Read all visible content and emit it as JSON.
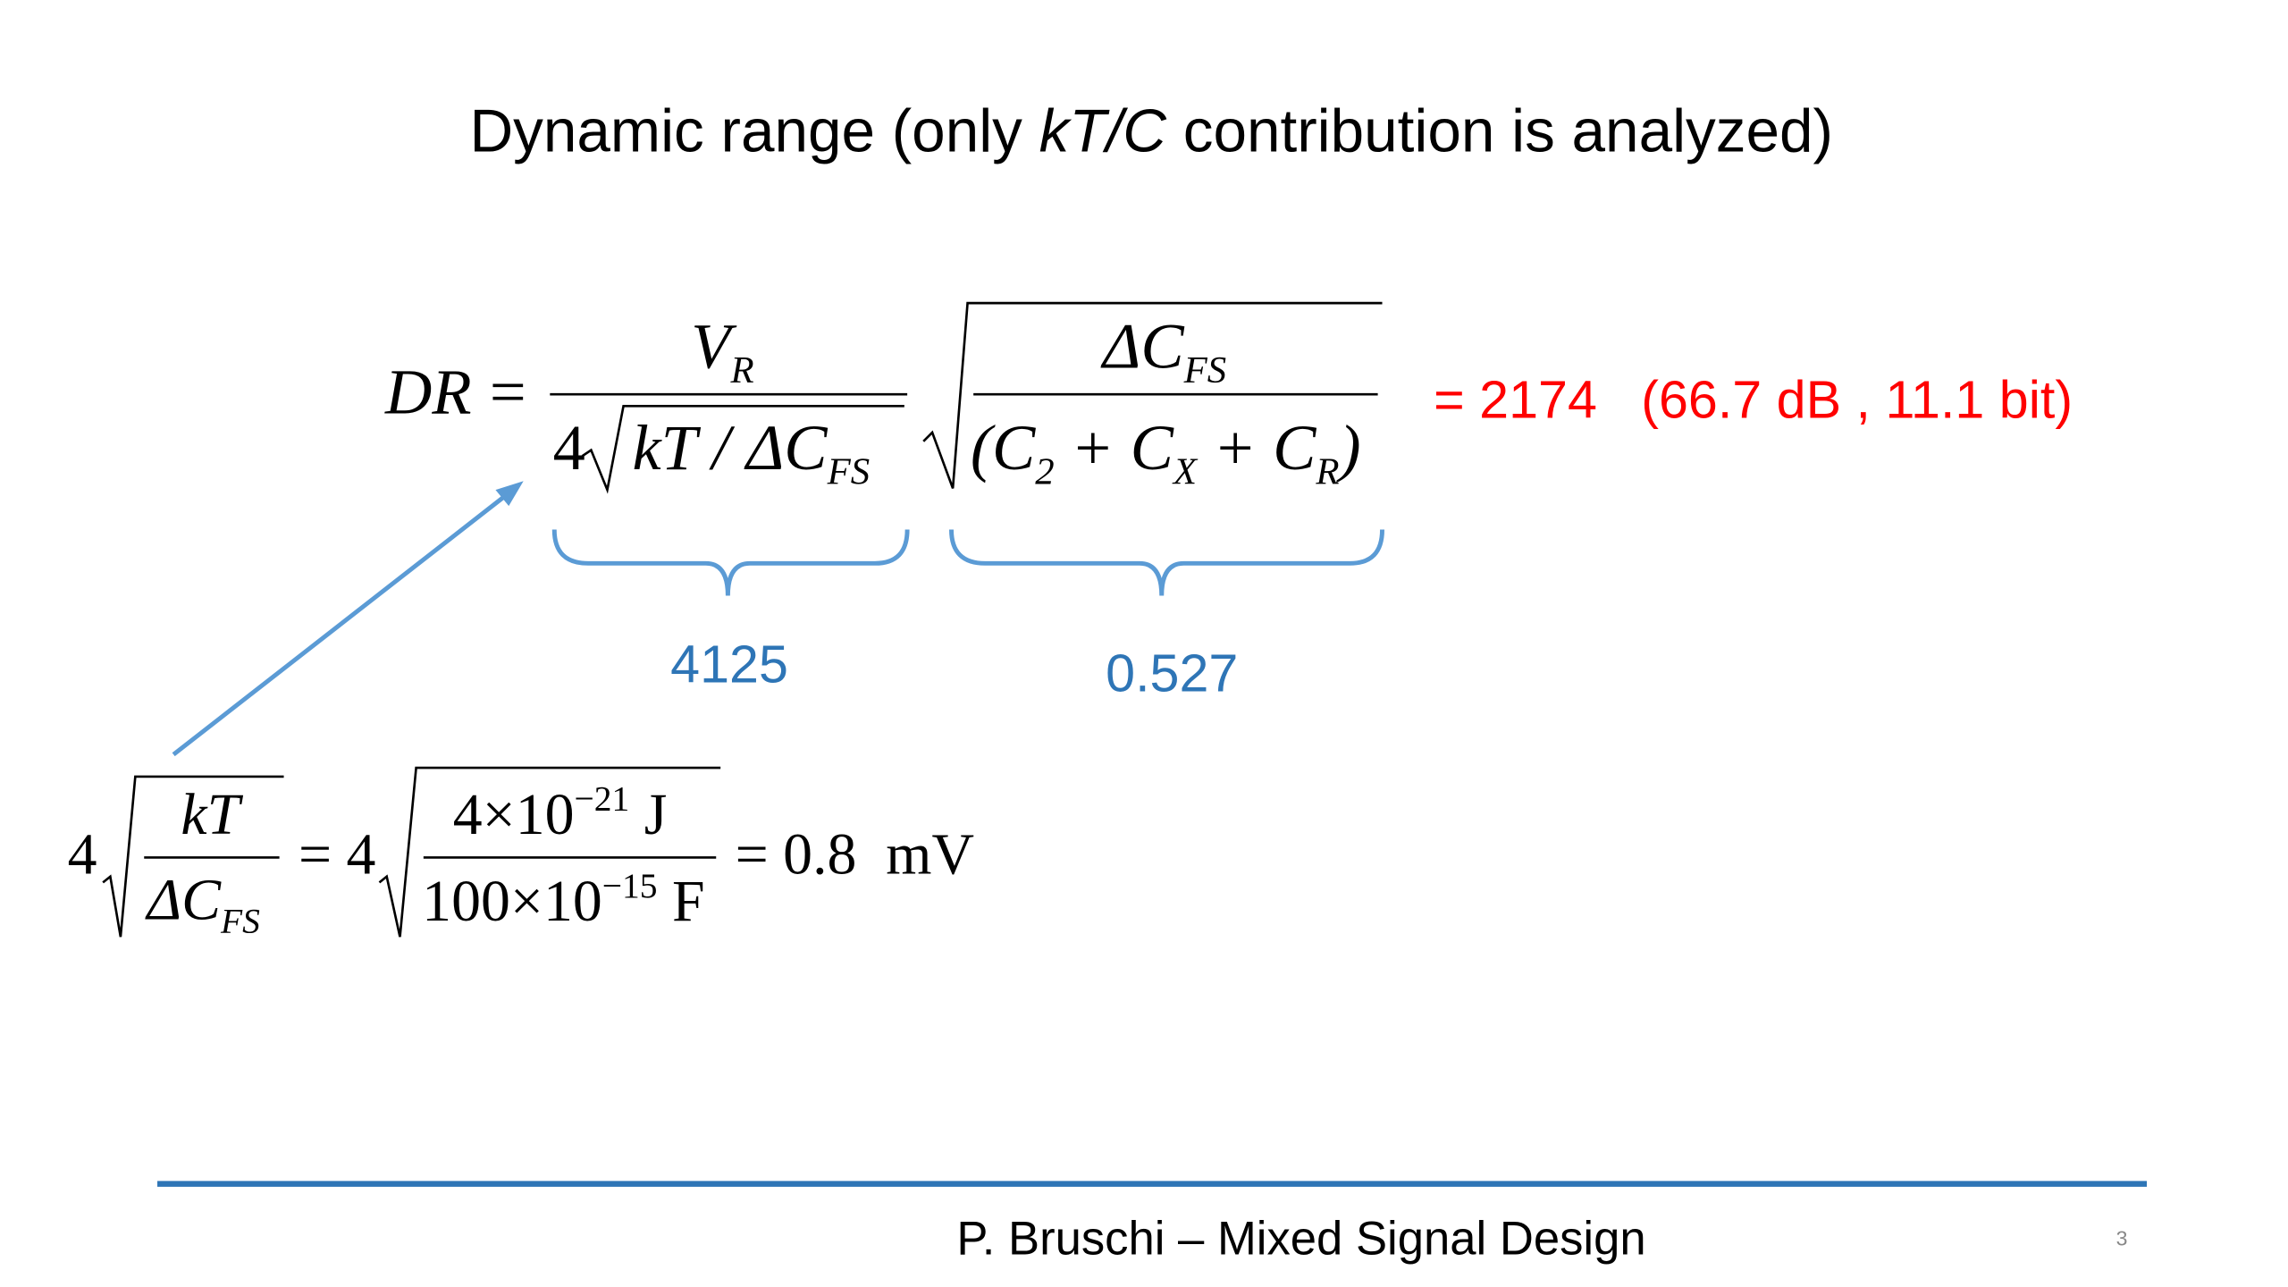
{
  "title": {
    "before": "Dynamic range (only ",
    "italic": "kT/C",
    "after": " contribution is analyzed)"
  },
  "dr_formula": {
    "lhs": "DR",
    "equals": "=",
    "numerator": "V",
    "numerator_sub": "R",
    "denominator_factor": "4",
    "denominator_root": "kT / ΔC",
    "denominator_root_sub": "FS",
    "root_numerator": "ΔC",
    "root_numerator_sub": "FS",
    "root_denominator": [
      "(C",
      "2",
      " + C",
      "X",
      " + C",
      "R",
      ")"
    ]
  },
  "result": "= 2174   (66.7 dB , 11.1 bit)",
  "brace_labels": [
    "4125",
    "0.527"
  ],
  "noise_formula": {
    "factor": "4",
    "numerator": "kT",
    "denominator": "ΔC",
    "denominator_sub": "FS",
    "equals_factor": "= 4",
    "num_mantissa": "4×10",
    "num_exponent": "−21",
    "num_unit": " J",
    "den_mantissa": "100×10",
    "den_exponent": "−15",
    "den_unit": " F",
    "result": "= 0.8  mV"
  },
  "footer": {
    "text": "P. Bruschi – Mixed Signal Design",
    "page": "3"
  }
}
